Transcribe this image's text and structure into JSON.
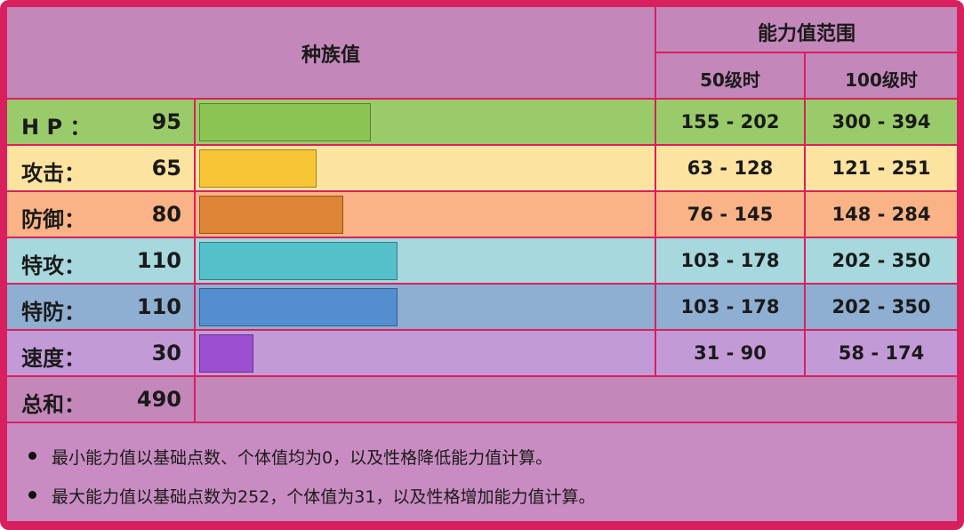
{
  "header": {
    "base_stats": "种族值",
    "range": "能力值范围",
    "lv50": "50级时",
    "lv100": "100级时"
  },
  "rows": [
    {
      "label": "H P ：",
      "value": 95,
      "lv50": "155 - 202",
      "lv100": "300 - 394",
      "row_color": "#9acb6a",
      "bar_color": "#8bc453"
    },
    {
      "label": "攻击：",
      "value": 65,
      "lv50": "63 - 128",
      "lv100": "121 - 251",
      "row_color": "#fde3a0",
      "bar_color": "#f8c537"
    },
    {
      "label": "防御：",
      "value": 80,
      "lv50": "76 - 145",
      "lv100": "148 - 284",
      "row_color": "#f9b386",
      "bar_color": "#de8436"
    },
    {
      "label": "特攻：",
      "value": 110,
      "lv50": "103 - 178",
      "lv100": "202 - 350",
      "row_color": "#a6d8dd",
      "bar_color": "#56c0ca"
    },
    {
      "label": "特防：",
      "value": 110,
      "lv50": "103 - 178",
      "lv100": "202 - 350",
      "row_color": "#8eaed2",
      "bar_color": "#538fd0"
    },
    {
      "label": "速度：",
      "value": 30,
      "lv50": "31 - 90",
      "lv100": "58 - 174",
      "row_color": "#c39ad8",
      "bar_color": "#9d4fd2"
    }
  ],
  "total": {
    "label": "总和：",
    "value": 490
  },
  "notes": [
    "最小能力值以基础点数、个体值均为0，以及性格降低能力值计算。",
    "最大能力值以基础点数为252，个体值为31，以及性格增加能力值计算。"
  ]
}
